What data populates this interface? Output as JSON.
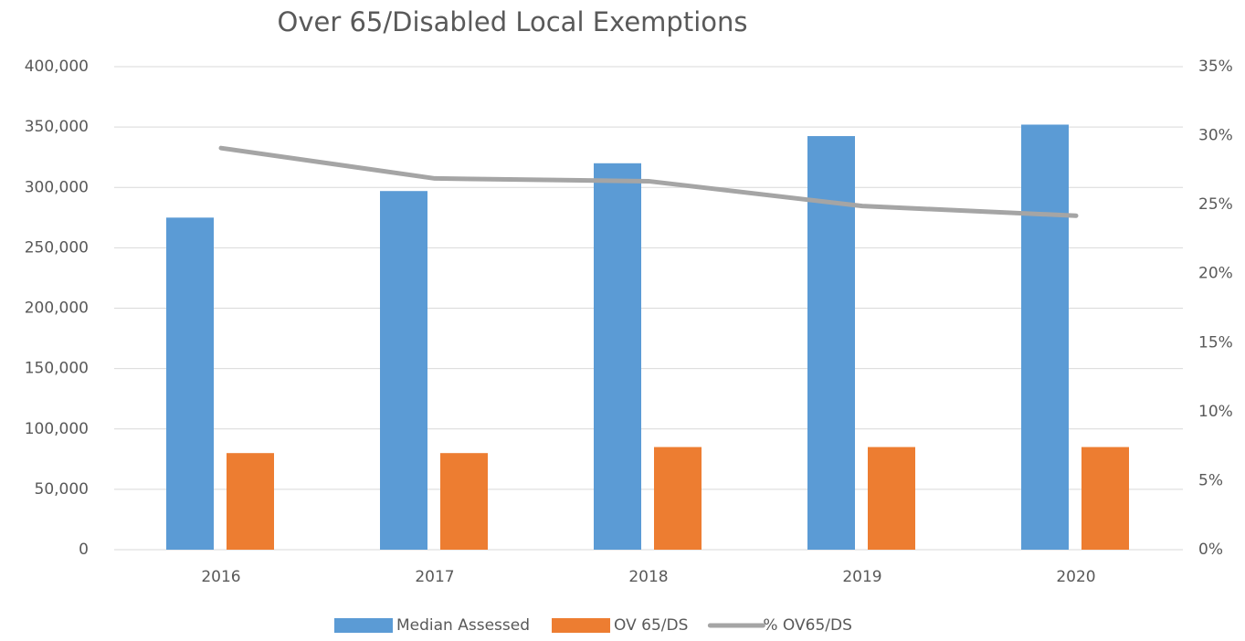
{
  "chart_data": {
    "type": "bar_line",
    "title": "Over 65/Disabled Local Exemptions",
    "categories": [
      "2016",
      "2017",
      "2018",
      "2019",
      "2020"
    ],
    "series": [
      {
        "name": "Median Assessed",
        "color": "#5b9bd5",
        "type": "bar",
        "values": [
          275000,
          297000,
          320000,
          342500,
          352000
        ]
      },
      {
        "name": "OV 65/DS",
        "color": "#ed7d31",
        "type": "bar",
        "values": [
          80000,
          80000,
          85000,
          85000,
          85000
        ]
      },
      {
        "name": "% OV65/DS",
        "color": "#a5a5a5",
        "type": "line",
        "axis": "y2",
        "values": [
          29.1,
          26.9,
          26.7,
          24.9,
          24.2
        ]
      }
    ],
    "ylim": [
      0,
      400000
    ],
    "yticks": [
      0,
      {
        "value": 50000,
        "label": "50,000"
      },
      {
        "value": 100000,
        "label": "100,000"
      },
      {
        "value": 150000,
        "label": "150,000"
      },
      {
        "value": 200000,
        "label": "200,000"
      },
      {
        "value": 250000,
        "label": "250,000"
      },
      {
        "value": 300000,
        "label": "300,000"
      },
      {
        "value": 350000,
        "label": "350,000"
      },
      {
        "value": 400000,
        "label": "400,000"
      }
    ],
    "y2lim": [
      0,
      35
    ],
    "y2ticks": [
      {
        "value": 0,
        "label": "0%"
      },
      {
        "value": 5,
        "label": "5%"
      },
      {
        "value": 10,
        "label": "10%"
      },
      {
        "value": 15,
        "label": "15%"
      },
      {
        "value": 20,
        "label": "20%"
      },
      {
        "value": 25,
        "label": "25%"
      },
      {
        "value": 30,
        "label": "30%"
      },
      {
        "value": 35,
        "label": "35%"
      }
    ],
    "grid": true,
    "legend": "bottom"
  }
}
